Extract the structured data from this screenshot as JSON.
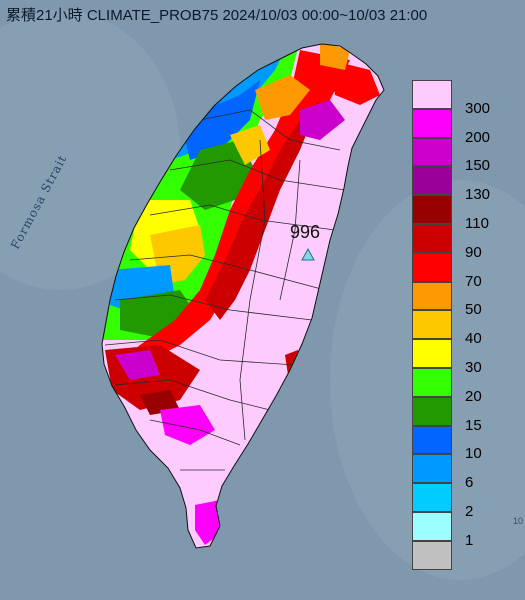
{
  "title": "累積21小時 CLIMATE_PROB75 2024/10/03 00:00~10/03 21:00",
  "strait_label": "Formosa Strait",
  "station": {
    "value": "996",
    "marker": "triangle-marker-icon",
    "color": "#7fd7ea"
  },
  "corner_number": "10",
  "legend": [
    {
      "label": "300",
      "color": "#fecbfe"
    },
    {
      "label": "200",
      "color": "#fd00fc"
    },
    {
      "label": "150",
      "color": "#cc00cc"
    },
    {
      "label": "130",
      "color": "#9a0099"
    },
    {
      "label": "110",
      "color": "#990000"
    },
    {
      "label": "90",
      "color": "#cc0000"
    },
    {
      "label": "70",
      "color": "#fe0000"
    },
    {
      "label": "50",
      "color": "#fd9900"
    },
    {
      "label": "40",
      "color": "#fdc800"
    },
    {
      "label": "30",
      "color": "#ffff00"
    },
    {
      "label": "20",
      "color": "#33ff00"
    },
    {
      "label": "15",
      "color": "#229900"
    },
    {
      "label": "10",
      "color": "#0066ff"
    },
    {
      "label": "6",
      "color": "#0099ff"
    },
    {
      "label": "2",
      "color": "#00ccff"
    },
    {
      "label": "1",
      "color": "#9bffff"
    },
    {
      "label": "",
      "color": "#c0c0c0"
    }
  ]
}
